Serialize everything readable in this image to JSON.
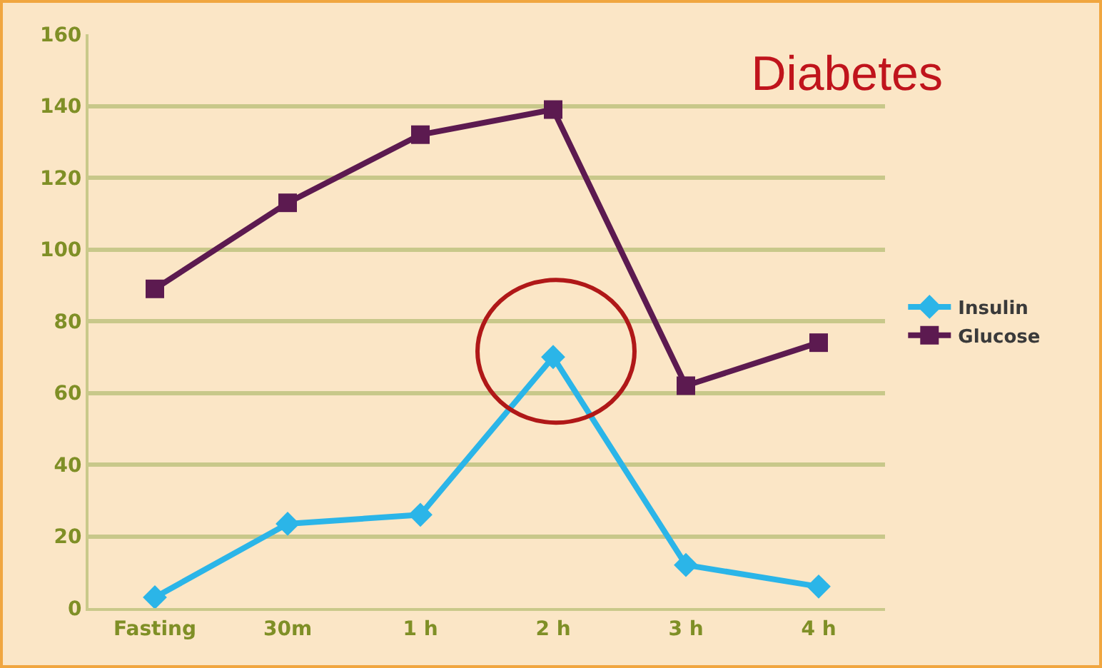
{
  "chart_data": {
    "type": "line",
    "title": "Diabetes",
    "categories": [
      "Fasting",
      "30m",
      "1 h",
      "2 h",
      "3 h",
      "4 h"
    ],
    "series": [
      {
        "name": "Insulin",
        "color": "#2bb5e8",
        "marker": "diamond",
        "values": [
          3,
          23.5,
          26,
          70,
          12,
          6
        ]
      },
      {
        "name": "Glucose",
        "color": "#5c1a50",
        "marker": "square",
        "values": [
          89,
          113,
          132,
          139,
          62,
          74
        ]
      }
    ],
    "ylim": [
      0,
      160
    ],
    "yticks": [
      0,
      20,
      40,
      60,
      80,
      100,
      120,
      140,
      160
    ],
    "grid": "y",
    "legend": "right",
    "line_style": "solid"
  }
}
